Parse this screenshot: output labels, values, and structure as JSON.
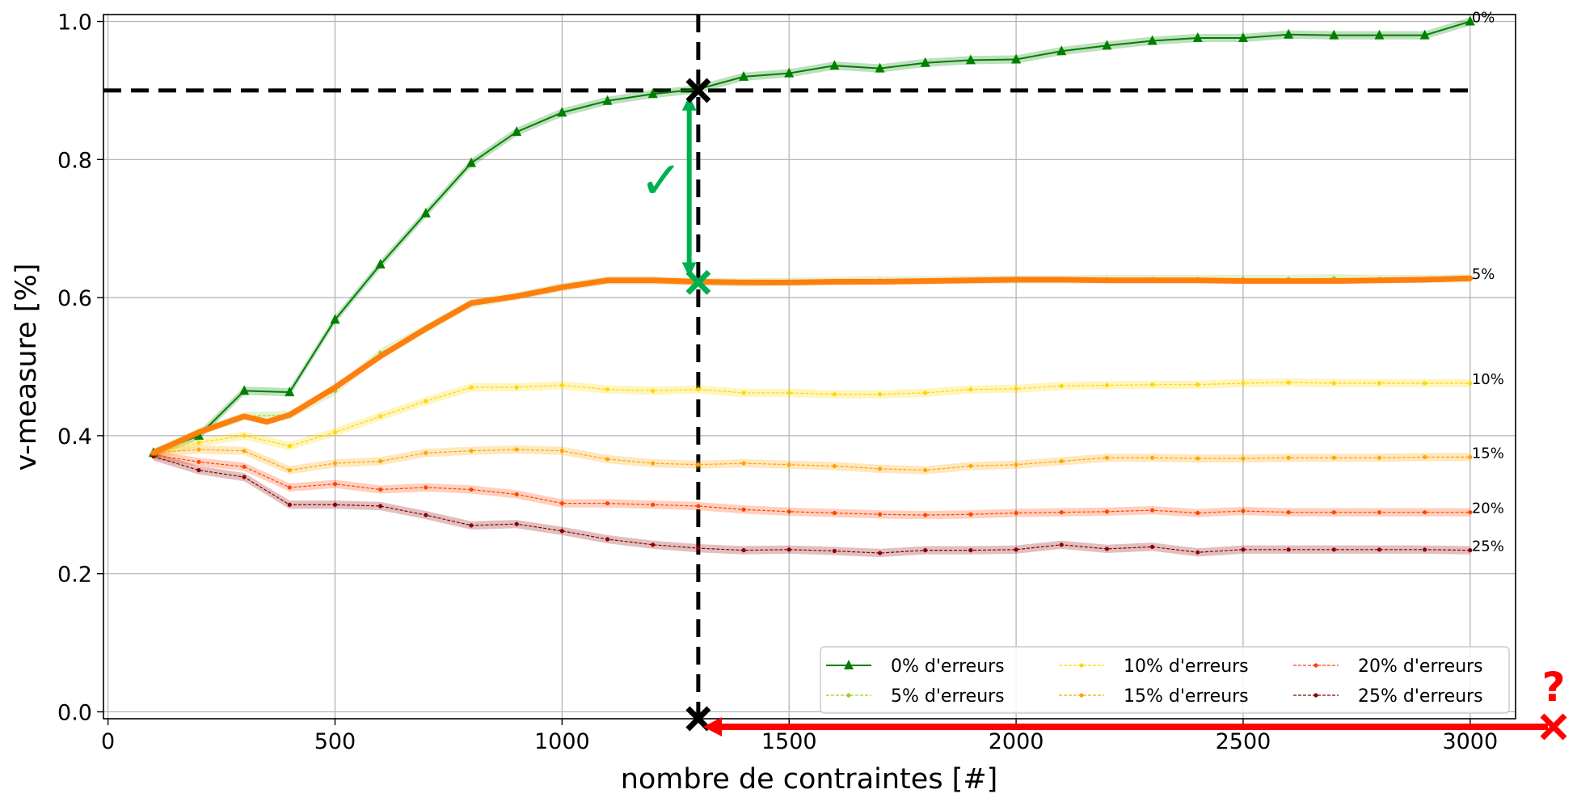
{
  "chart_data": {
    "type": "line",
    "xlabel": "nombre de contraintes [#]",
    "ylabel": "v-measure [%]",
    "xlim": [
      -10,
      3100
    ],
    "ylim": [
      -0.01,
      1.01
    ],
    "x_ticks": [
      0,
      500,
      1000,
      1500,
      2000,
      2500,
      3000
    ],
    "y_ticks": [
      0.0,
      0.2,
      0.4,
      0.6,
      0.8,
      1.0
    ],
    "x_tick_labels": [
      "0",
      "500",
      "1000",
      "1500",
      "2000",
      "2500",
      "3000"
    ],
    "y_tick_labels": [
      "0.0",
      "0.2",
      "0.4",
      "0.6",
      "0.8",
      "1.0"
    ],
    "grid": true,
    "legend_position": "bottom-right",
    "x": [
      100,
      200,
      300,
      400,
      500,
      600,
      700,
      800,
      900,
      1000,
      1100,
      1200,
      1300,
      1400,
      1500,
      1600,
      1700,
      1800,
      1900,
      2000,
      2100,
      2200,
      2300,
      2400,
      2500,
      2600,
      2700,
      2800,
      2900,
      3000
    ],
    "series": [
      {
        "name": "0% d'erreurs",
        "end_label": "0%",
        "color": "#008000",
        "marker": "triangle",
        "values": [
          0.375,
          0.4,
          0.465,
          0.463,
          0.568,
          0.648,
          0.722,
          0.795,
          0.84,
          0.868,
          0.885,
          0.895,
          0.902,
          0.92,
          0.925,
          0.936,
          0.932,
          0.94,
          0.944,
          0.945,
          0.957,
          0.965,
          0.972,
          0.976,
          0.976,
          0.981,
          0.98,
          0.98,
          0.98,
          1.0
        ]
      },
      {
        "name": "5% d'erreurs",
        "end_label": "5%",
        "color": "#9acd32",
        "marker": "dot",
        "values": [
          0.375,
          0.405,
          0.428,
          0.43,
          0.465,
          0.52,
          0.555,
          0.592,
          0.602,
          0.615,
          0.625,
          0.625,
          0.623,
          0.622,
          0.623,
          0.624,
          0.625,
          0.625,
          0.626,
          0.626,
          0.626,
          0.627,
          0.627,
          0.627,
          0.627,
          0.627,
          0.628,
          0.627,
          0.627,
          0.628
        ]
      },
      {
        "name": "10% d'erreurs",
        "end_label": "10%",
        "color": "#ffd700",
        "marker": "dot",
        "values": [
          0.375,
          0.39,
          0.4,
          0.385,
          0.405,
          0.428,
          0.45,
          0.47,
          0.47,
          0.473,
          0.467,
          0.465,
          0.467,
          0.462,
          0.462,
          0.46,
          0.46,
          0.462,
          0.467,
          0.468,
          0.472,
          0.473,
          0.474,
          0.474,
          0.476,
          0.477,
          0.476,
          0.476,
          0.476,
          0.476
        ]
      },
      {
        "name": "15% d'erreurs",
        "end_label": "15%",
        "color": "#ffa500",
        "marker": "dot",
        "values": [
          0.375,
          0.38,
          0.378,
          0.35,
          0.36,
          0.363,
          0.375,
          0.378,
          0.38,
          0.378,
          0.366,
          0.36,
          0.358,
          0.36,
          0.358,
          0.356,
          0.352,
          0.35,
          0.356,
          0.358,
          0.363,
          0.368,
          0.368,
          0.367,
          0.367,
          0.368,
          0.368,
          0.368,
          0.369,
          0.369
        ]
      },
      {
        "name": "20% d'erreurs",
        "end_label": "20%",
        "color": "#ff4500",
        "marker": "dot",
        "values": [
          0.372,
          0.362,
          0.355,
          0.325,
          0.33,
          0.322,
          0.325,
          0.322,
          0.315,
          0.302,
          0.302,
          0.3,
          0.298,
          0.293,
          0.29,
          0.288,
          0.286,
          0.285,
          0.286,
          0.288,
          0.289,
          0.29,
          0.292,
          0.288,
          0.291,
          0.289,
          0.289,
          0.289,
          0.289,
          0.289
        ]
      },
      {
        "name": "25% d'erreurs",
        "end_label": "25%",
        "color": "#8b0000",
        "marker": "dot",
        "values": [
          0.37,
          0.35,
          0.34,
          0.3,
          0.3,
          0.298,
          0.285,
          0.27,
          0.272,
          0.262,
          0.25,
          0.242,
          0.237,
          0.234,
          0.235,
          0.233,
          0.23,
          0.234,
          0.234,
          0.235,
          0.242,
          0.236,
          0.239,
          0.231,
          0.235,
          0.235,
          0.235,
          0.235,
          0.235,
          0.234
        ]
      }
    ],
    "highlight": {
      "color": "#ff7f0e",
      "x": [
        100,
        200,
        300,
        350,
        400,
        500,
        600,
        700,
        800,
        900,
        1000,
        1100,
        1200,
        1300,
        1400,
        1500,
        1600,
        1700,
        1800,
        1900,
        2000,
        2100,
        2200,
        2300,
        2400,
        2500,
        2600,
        2700,
        2800,
        2900,
        3000
      ],
      "values": [
        0.375,
        0.405,
        0.428,
        0.42,
        0.43,
        0.47,
        0.515,
        0.555,
        0.592,
        0.602,
        0.615,
        0.625,
        0.625,
        0.623,
        0.622,
        0.622,
        0.623,
        0.623,
        0.624,
        0.625,
        0.626,
        0.626,
        0.625,
        0.625,
        0.625,
        0.624,
        0.624,
        0.624,
        0.625,
        0.626,
        0.628
      ]
    },
    "annotations": {
      "hline_y": 0.9,
      "vline_x": 1300,
      "black_cross_top": [
        1300,
        0.9
      ],
      "black_cross_bottom": [
        1300,
        -0.01
      ],
      "green_cross": [
        1300,
        0.622
      ],
      "green_arrow": {
        "x": 1280,
        "from": 0.63,
        "to": 0.892,
        "color": "#00b050"
      },
      "checkmark_symbol": "✓",
      "checkmark_color": "#00b050",
      "question_symbol": "?",
      "question_color": "#ff0000",
      "red_arrow_color": "#ff0000"
    }
  }
}
